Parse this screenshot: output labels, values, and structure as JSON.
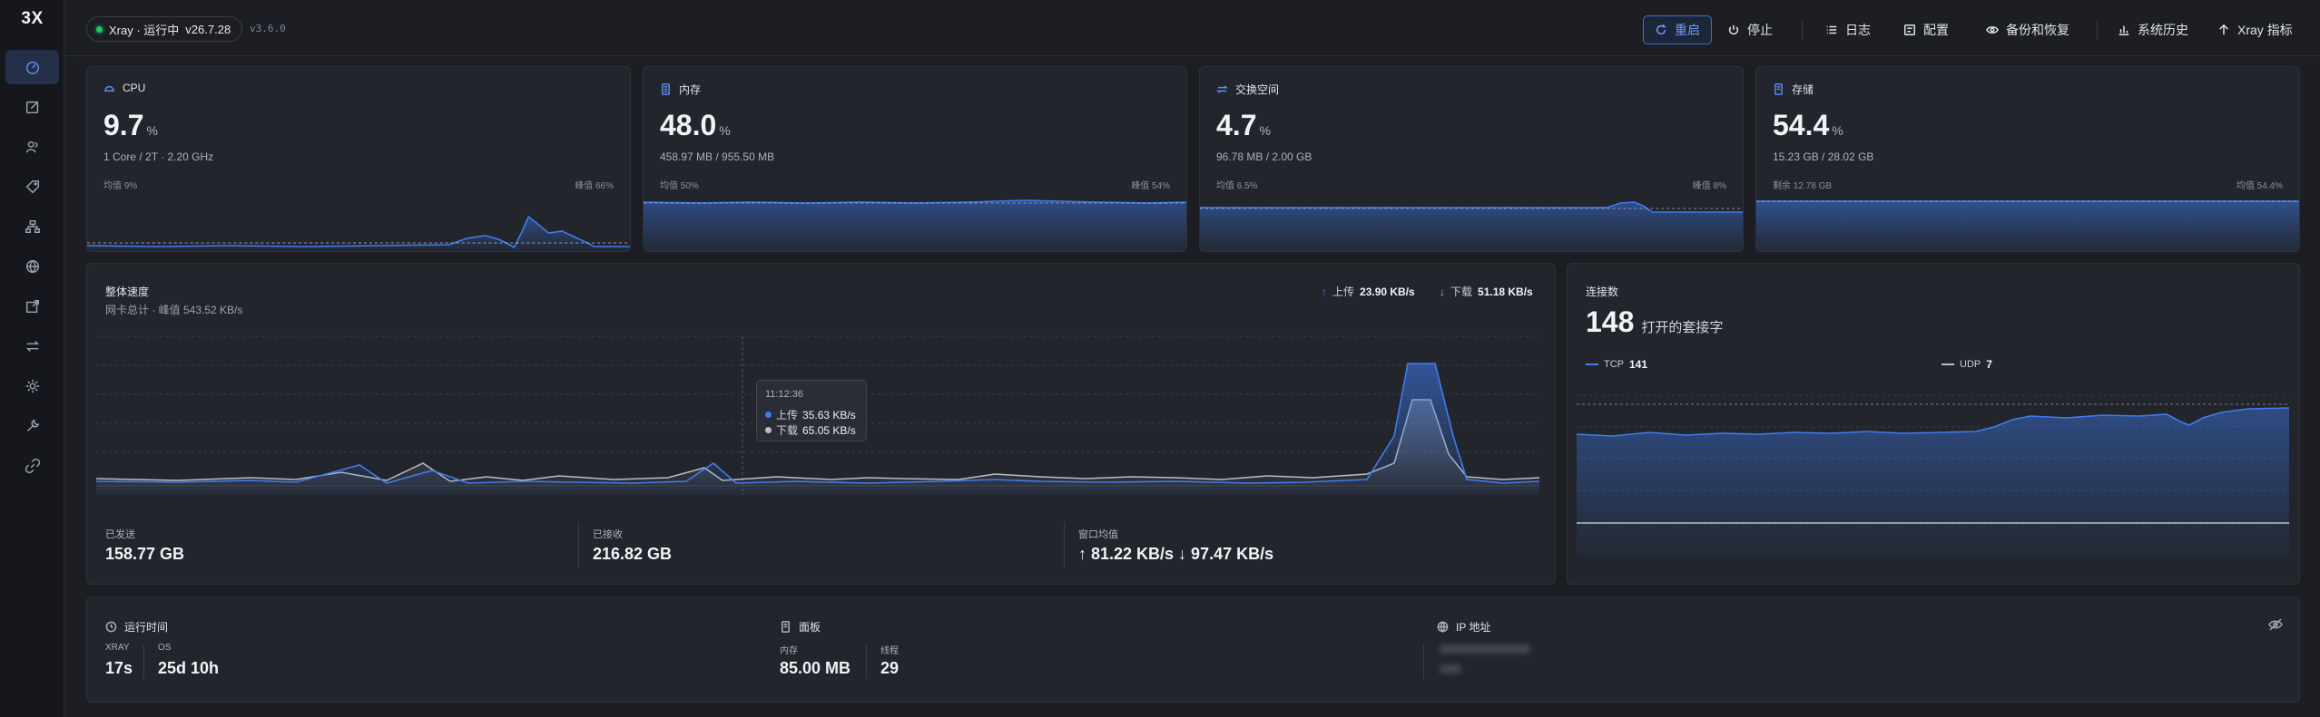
{
  "app": {
    "logo": "3X"
  },
  "topbar": {
    "status": "Xray · 运行中",
    "xray_version": "v26.7.28",
    "panel_version": "v3.6.0",
    "buttons": {
      "restart": "重启",
      "stop": "停止",
      "logs": "日志",
      "config": "配置",
      "backup": "备份和恢复",
      "history": "系统历史",
      "metrics": "Xray 指标"
    }
  },
  "cards": {
    "cpu": {
      "title": "CPU",
      "value": "9.7",
      "unit": "%",
      "sub": "1 Core / 2T · 2.20 GHz",
      "left": "均值 9%",
      "right": "峰值 66%"
    },
    "mem": {
      "title": "内存",
      "value": "48.0",
      "unit": "%",
      "sub": "458.97 MB / 955.50 MB",
      "left": "均值 50%",
      "right": "峰值 54%"
    },
    "swap": {
      "title": "交换空间",
      "value": "4.7",
      "unit": "%",
      "sub": "96.78 MB / 2.00 GB",
      "left": "均值 6.5%",
      "right": "峰值 8%"
    },
    "disk": {
      "title": "存储",
      "value": "54.4",
      "unit": "%",
      "sub": "15.23 GB / 28.02 GB",
      "left": "剩余 12.78 GB",
      "right": "均值 54.4%"
    }
  },
  "throughput": {
    "title": "整体速度",
    "subtitle": "网卡总计 · 峰值 543.52 KB/s",
    "up_label": "上传",
    "up_value": "23.90 KB/s",
    "down_label": "下载",
    "down_value": "51.18 KB/s",
    "tooltip": {
      "time": "11:12:36",
      "up_label": "上传",
      "up_value": "35.63 KB/s",
      "down_label": "下载",
      "down_value": "65.05 KB/s"
    },
    "sent_label": "已发送",
    "sent_value": "158.77 GB",
    "recv_label": "已接收",
    "recv_value": "216.82 GB",
    "window_label": "窗口均值",
    "window_value": "↑ 81.22 KB/s ↓ 97.47 KB/s"
  },
  "connections": {
    "title": "连接数",
    "count": "148",
    "count_label": "打开的套接字",
    "tcp_label": "TCP",
    "tcp_value": "141",
    "udp_label": "UDP",
    "udp_value": "7"
  },
  "bottom": {
    "uptime_title": "运行时间",
    "xray_label": "XRAY",
    "xray_value": "17s",
    "os_label": "OS",
    "os_value": "25d 10h",
    "panel_title": "面板",
    "mem_label": "内存",
    "mem_value": "85.00 MB",
    "threads_label": "线程",
    "threads_value": "29",
    "ip_title": "IP 地址"
  },
  "colors": {
    "accent": "#3f7cf0",
    "upload": "#3f7cf0",
    "download": "#b8bcc5",
    "background": "#1c1e24",
    "card": "#22252c"
  }
}
